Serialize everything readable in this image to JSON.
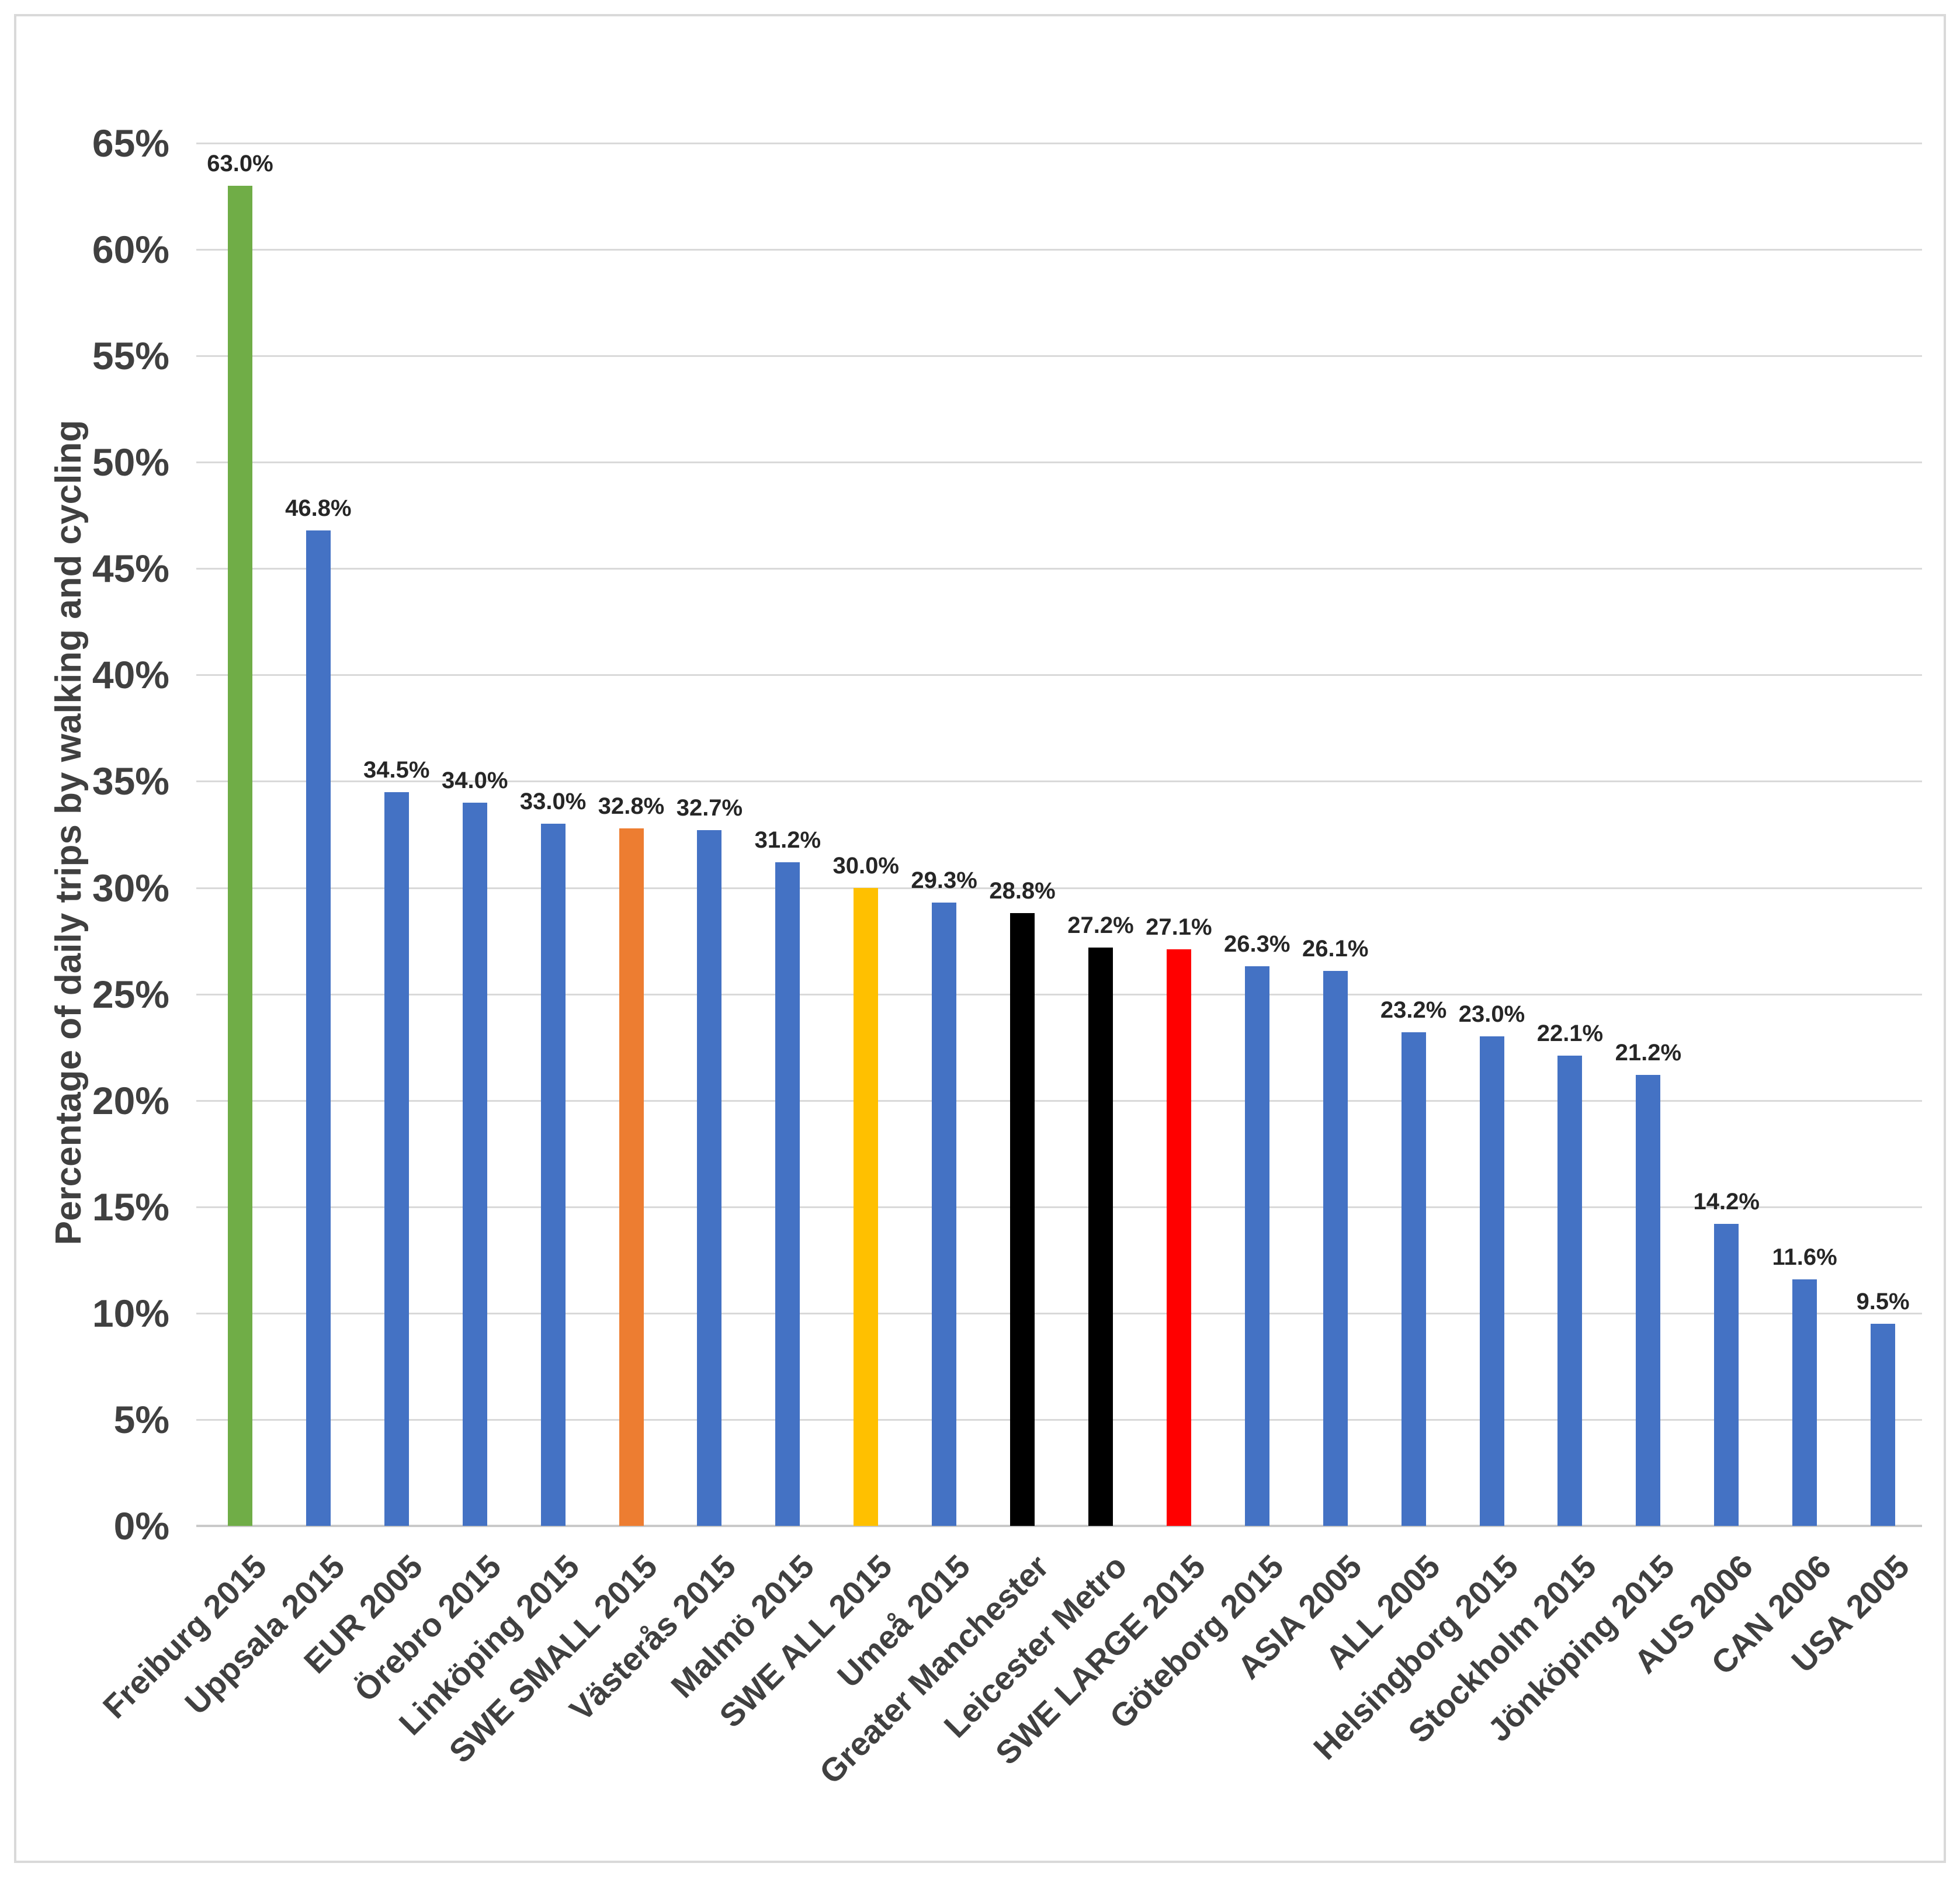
{
  "chart_data": {
    "type": "bar",
    "title": "",
    "xlabel": "",
    "ylabel": "Percentage of daily trips by walking and cycling",
    "ylim": [
      0,
      65
    ],
    "ytick_step": 5,
    "ytick_suffix": "%",
    "grid": true,
    "legend_position": "none",
    "categories": [
      "Freiburg 2015",
      "Uppsala 2015",
      "EUR 2005",
      "Örebro 2015",
      "Linköping 2015",
      "SWE SMALL 2015",
      "Västerås 2015",
      "Malmö 2015",
      "SWE ALL 2015",
      "Umeå 2015",
      "Greater Manchester",
      "Leicester Metro",
      "SWE LARGE 2015",
      "Göteborg 2015",
      "ASIA 2005",
      "ALL 2005",
      "Helsingborg 2015",
      "Stockholm 2015",
      "Jönköping 2015",
      "AUS 2006",
      "CAN 2006",
      "USA 2005"
    ],
    "values": [
      63.0,
      46.8,
      34.5,
      34.0,
      33.0,
      32.8,
      32.7,
      31.2,
      30.0,
      29.3,
      28.8,
      27.2,
      27.1,
      26.3,
      26.1,
      23.2,
      23.0,
      22.1,
      21.2,
      14.2,
      11.6,
      9.5
    ],
    "value_labels": [
      "63.0%",
      "46.8%",
      "34.5%",
      "34.0%",
      "33.0%",
      "32.8%",
      "32.7%",
      "31.2%",
      "30.0%",
      "29.3%",
      "28.8%",
      "27.2%",
      "27.1%",
      "26.3%",
      "26.1%",
      "23.2%",
      "23.0%",
      "22.1%",
      "21.2%",
      "14.2%",
      "11.6%",
      "9.5%"
    ],
    "bar_colors": [
      "#70AD47",
      "#4472C4",
      "#4472C4",
      "#4472C4",
      "#4472C4",
      "#ED7D31",
      "#4472C4",
      "#4472C4",
      "#FFC000",
      "#4472C4",
      "#000000",
      "#000000",
      "#FF0000",
      "#4472C4",
      "#4472C4",
      "#4472C4",
      "#4472C4",
      "#4472C4",
      "#4472C4",
      "#4472C4",
      "#4472C4",
      "#4472C4"
    ],
    "ytick_labels": [
      "0%",
      "5%",
      "10%",
      "15%",
      "20%",
      "25%",
      "30%",
      "35%",
      "40%",
      "45%",
      "50%",
      "55%",
      "60%",
      "65%"
    ],
    "colors": {
      "default_bar": "#4472C4",
      "highlight_green": "#70AD47",
      "highlight_orange": "#ED7D31",
      "highlight_gold": "#FFC000",
      "highlight_black": "#000000",
      "highlight_red": "#FF0000",
      "gridline": "#D9D9D9",
      "axis_text": "#404040",
      "data_label_text": "#262626"
    }
  }
}
